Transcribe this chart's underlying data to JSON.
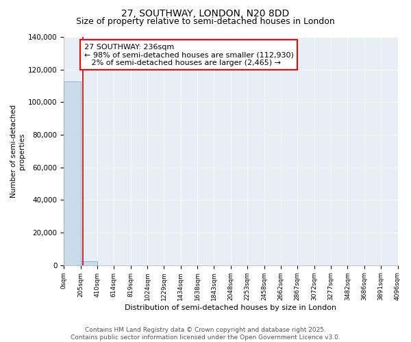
{
  "title": "27, SOUTHWAY, LONDON, N20 8DD",
  "subtitle": "Size of property relative to semi-detached houses in London",
  "xlabel": "Distribution of semi-detached houses by size in London",
  "ylabel": "Number of semi-detached\nproperties",
  "property_size": 236,
  "annotation_line1": "27 SOUTHWAY: 236sqm",
  "annotation_line2": "← 98% of semi-detached houses are smaller (112,930)",
  "annotation_line3": "   2% of semi-detached houses are larger (2,465) →",
  "bar_color": "#c9daea",
  "bar_edge_color": "#7bafd4",
  "vline_color": "#cc0000",
  "background_color": "#e8eef5",
  "grid_color": "#ffffff",
  "ylim": [
    0,
    140000
  ],
  "yticks": [
    0,
    20000,
    40000,
    60000,
    80000,
    100000,
    120000,
    140000
  ],
  "bins": [
    0,
    205,
    410,
    614,
    819,
    1024,
    1229,
    1434,
    1638,
    1843,
    2048,
    2253,
    2458,
    2662,
    2867,
    3072,
    3277,
    3482,
    3686,
    3891,
    4096
  ],
  "bin_labels": [
    "0sqm",
    "205sqm",
    "410sqm",
    "614sqm",
    "819sqm",
    "1024sqm",
    "1229sqm",
    "1434sqm",
    "1638sqm",
    "1843sqm",
    "2048sqm",
    "2253sqm",
    "2458sqm",
    "2662sqm",
    "2867sqm",
    "3072sqm",
    "3277sqm",
    "3482sqm",
    "3686sqm",
    "3891sqm",
    "4096sqm"
  ],
  "counts": [
    112930,
    2465,
    0,
    0,
    0,
    0,
    0,
    0,
    0,
    0,
    0,
    0,
    0,
    0,
    0,
    0,
    0,
    0,
    0,
    0
  ],
  "footer": "Contains HM Land Registry data © Crown copyright and database right 2025.\nContains public sector information licensed under the Open Government Licence v3.0.",
  "title_fontsize": 10,
  "subtitle_fontsize": 9,
  "annotation_fontsize": 8,
  "ylabel_fontsize": 7.5,
  "xlabel_fontsize": 8,
  "footer_fontsize": 6.5,
  "ytick_fontsize": 7.5,
  "xtick_fontsize": 6.5
}
